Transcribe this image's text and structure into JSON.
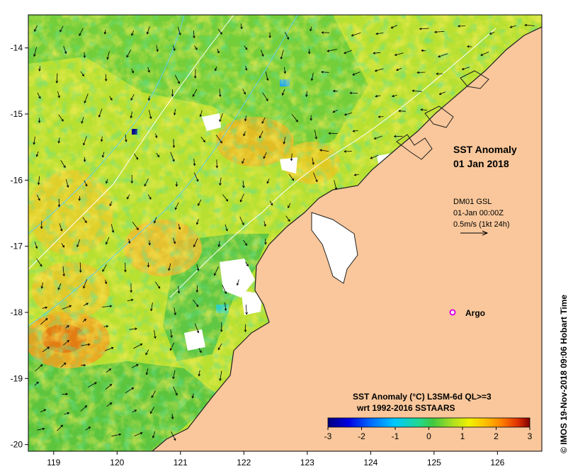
{
  "map": {
    "x_ticks": [
      "119",
      "120",
      "121",
      "122",
      "123",
      "124",
      "125",
      "126"
    ],
    "y_ticks": [
      "-14",
      "-15",
      "-16",
      "-17",
      "-18",
      "-19",
      "-20"
    ],
    "x_range": [
      118.6,
      126.7
    ],
    "y_range": [
      -20.1,
      -13.5
    ],
    "land_color": "#f9c79b",
    "missing_color": "#ffffff"
  },
  "title": {
    "line1": "SST Anomaly",
    "line2": "01 Jan 2018"
  },
  "current_legend": {
    "line1": "DM01 GSL",
    "line2": "01-Jan 00:00Z",
    "line3": "0.5m/s (1kt 24h)"
  },
  "argo": {
    "label": "Argo",
    "lon": 125.35,
    "lat": -17.97,
    "color": "#e000e0"
  },
  "colorbar": {
    "title1": "SST Anomaly (°C) L3SM-6d QL>=3",
    "title2": "wrt 1992-2016 SSTAARS",
    "ticks": [
      "-3",
      "-2",
      "-1",
      "0",
      "1",
      "2",
      "3"
    ],
    "colors": [
      "#00007f",
      "#0000e0",
      "#0070ff",
      "#00c8ff",
      "#20e0a0",
      "#40d040",
      "#b0e020",
      "#f0f000",
      "#ffc000",
      "#ff8000",
      "#e03000",
      "#800000"
    ]
  },
  "credit": "© IMOS 19-Nov-2018 09:06 Hobart Time"
}
